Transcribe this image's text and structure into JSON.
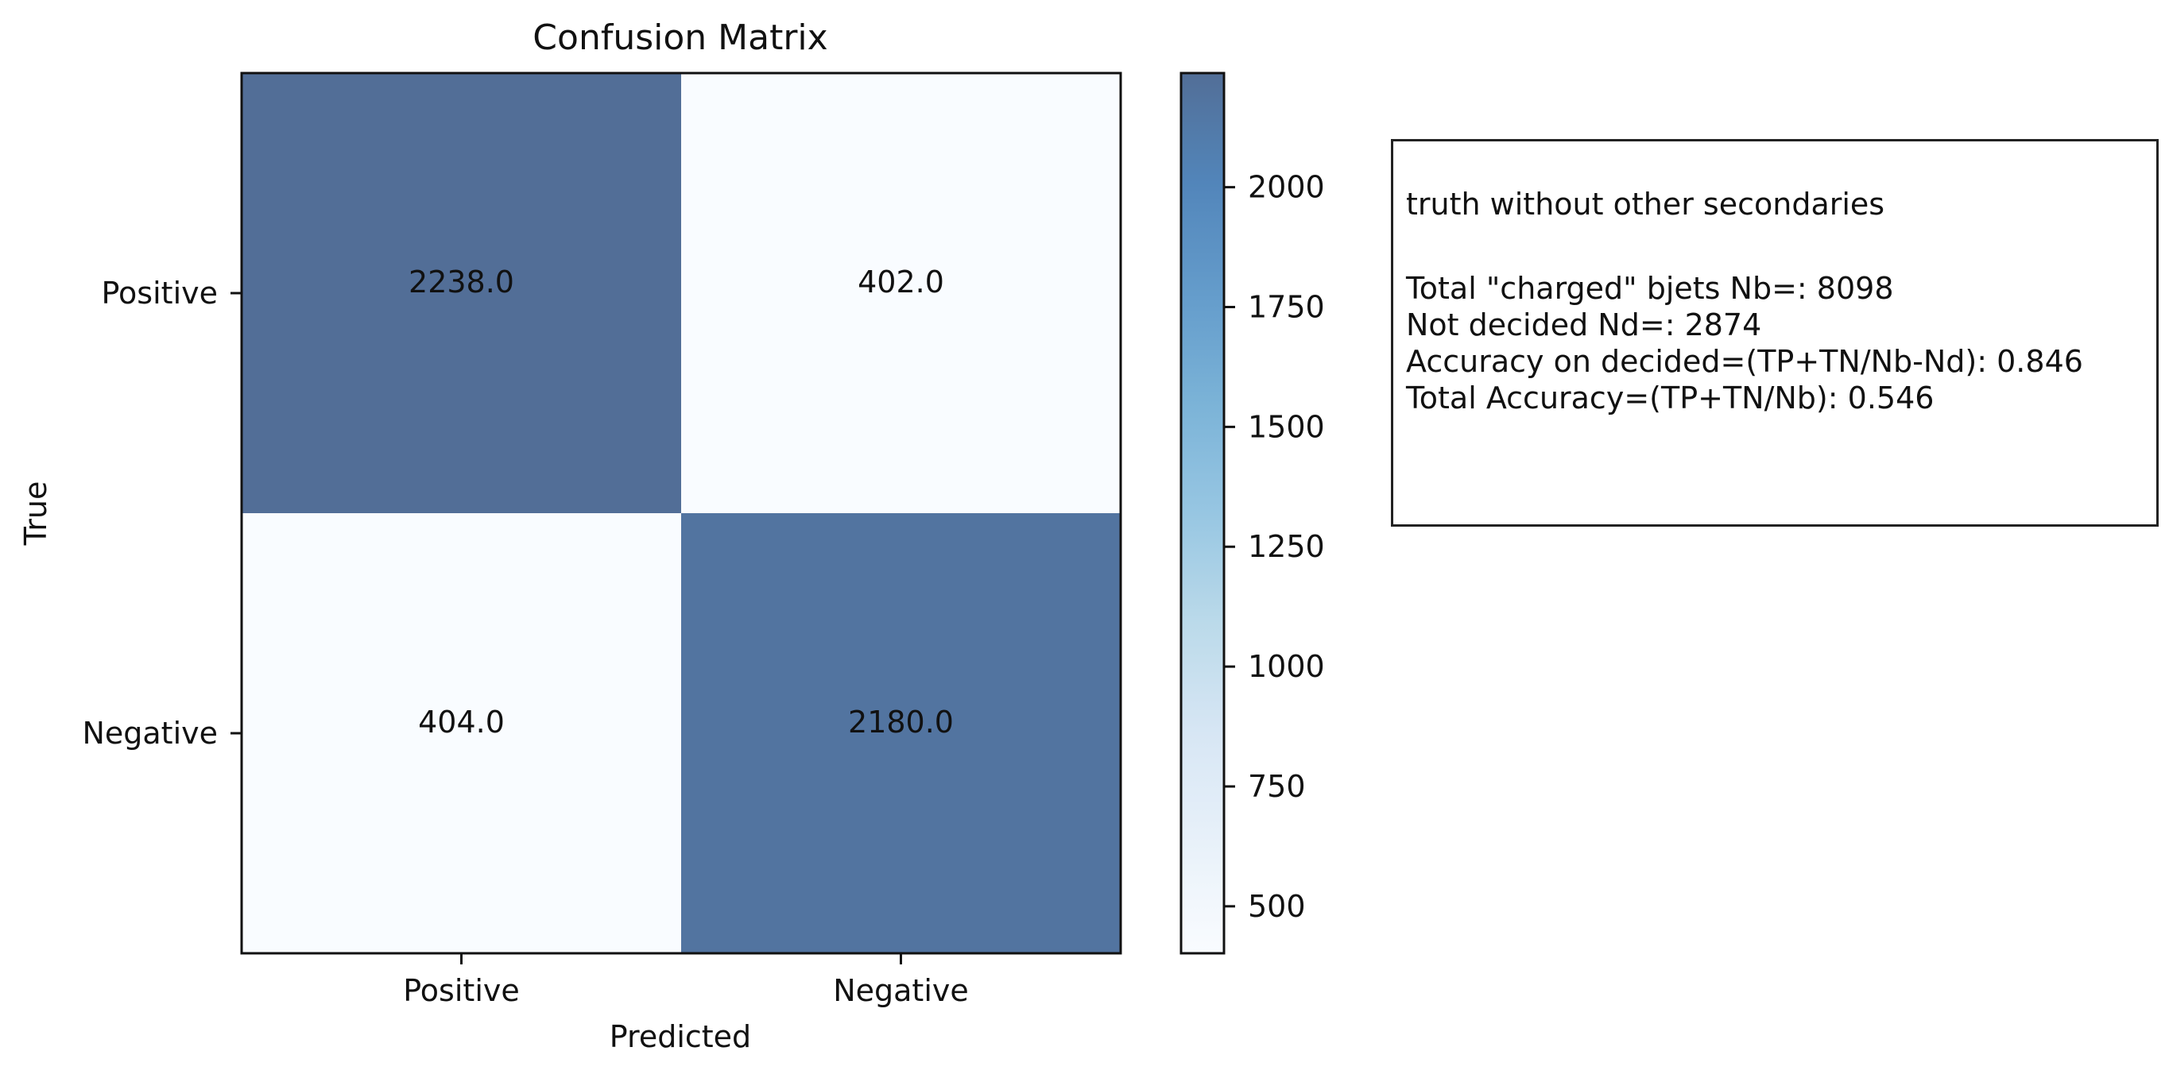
{
  "chart_data": {
    "type": "heatmap",
    "title": "Confusion Matrix",
    "xlabel": "Predicted",
    "ylabel": "True",
    "x_categories": [
      "Positive",
      "Negative"
    ],
    "y_categories": [
      "Positive",
      "Negative"
    ],
    "values": [
      [
        2238.0,
        402.0
      ],
      [
        404.0,
        2180.0
      ]
    ],
    "cell_labels": [
      [
        "2238.0",
        "402.0"
      ],
      [
        "404.0",
        "2180.0"
      ]
    ],
    "colorbar": {
      "vmin": 402.0,
      "vmax": 2238.0,
      "ticks": [
        500,
        750,
        1000,
        1250,
        1500,
        1750,
        2000
      ],
      "tick_labels": [
        "500",
        "750",
        "1000",
        "1250",
        "1500",
        "1750",
        "2000"
      ],
      "colormap": "Blues",
      "alpha": 0.7,
      "colors": [
        "#f7fbff",
        "#deebf7",
        "#c6dbef",
        "#9ecae1",
        "#6baed6",
        "#4292c6",
        "#2171b5",
        "#08519c",
        "#08306b"
      ]
    },
    "grid": false,
    "legend": "none"
  },
  "info_box": {
    "heading": "truth without other secondaries",
    "lines": [
      "Total \"charged\" bjets Nb=: 8098",
      "Not decided Nd=: 2874",
      "Accuracy on decided=(TP+TN/Nb-Nd): 0.846",
      "Total Accuracy=(TP+TN/Nb): 0.546"
    ]
  }
}
